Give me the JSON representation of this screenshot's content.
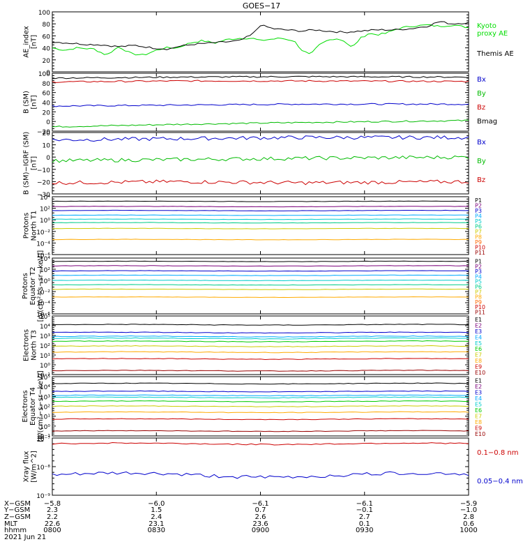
{
  "title": "GOES−17",
  "chart_data": [
    {
      "type": "line",
      "panel": "ae",
      "ylabel": [
        "AE_index",
        "[nT]"
      ],
      "ylim": [
        0,
        100
      ],
      "yticks": [
        "0",
        "20",
        "40",
        "60",
        "80",
        "100"
      ],
      "series": [
        {
          "name": "Kyoto proxy AE",
          "color": "#00dd00",
          "x": [
            0,
            0.03,
            0.06,
            0.1,
            0.13,
            0.16,
            0.19,
            0.22,
            0.25,
            0.27,
            0.3,
            0.33,
            0.36,
            0.39,
            0.42,
            0.45,
            0.48,
            0.5,
            0.52,
            0.55,
            0.58,
            0.6,
            0.62,
            0.64,
            0.66,
            0.68,
            0.7,
            0.72,
            0.74,
            0.76,
            0.78,
            0.8,
            0.83,
            0.86,
            0.9,
            0.93,
            0.96,
            1.0
          ],
          "values": [
            40,
            36,
            40,
            38,
            28,
            42,
            30,
            28,
            36,
            40,
            40,
            48,
            52,
            48,
            54,
            56,
            56,
            52,
            54,
            56,
            52,
            36,
            28,
            44,
            52,
            56,
            52,
            40,
            56,
            64,
            62,
            64,
            72,
            76,
            78,
            76,
            78,
            74
          ]
        },
        {
          "name": "Themis AE",
          "color": "#000000",
          "x": [
            0,
            0.04,
            0.08,
            0.12,
            0.16,
            0.2,
            0.24,
            0.28,
            0.3,
            0.34,
            0.38,
            0.42,
            0.45,
            0.48,
            0.5,
            0.53,
            0.56,
            0.6,
            0.63,
            0.66,
            0.7,
            0.74,
            0.78,
            0.82,
            0.86,
            0.9,
            0.93,
            0.96,
            1.0
          ],
          "values": [
            50,
            48,
            46,
            45,
            42,
            44,
            40,
            38,
            42,
            46,
            48,
            50,
            52,
            62,
            78,
            72,
            70,
            68,
            70,
            68,
            66,
            68,
            70,
            70,
            72,
            76,
            84,
            80,
            82
          ]
        }
      ]
    },
    {
      "type": "line",
      "panel": "bsm",
      "ylabel": [
        "B (SM)",
        "[nT]"
      ],
      "ylim": [
        -20,
        100
      ],
      "yticks": [
        "−20",
        "0",
        "20",
        "40",
        "60",
        "80",
        "100"
      ],
      "series": [
        {
          "name": "Bx",
          "color": "#0000cc",
          "x": [
            0,
            0.3,
            0.6,
            1.0
          ],
          "values": [
            32,
            34,
            36,
            36
          ]
        },
        {
          "name": "By",
          "color": "#00bb00",
          "x": [
            0,
            0.3,
            0.6,
            1.0
          ],
          "values": [
            -11,
            -6,
            -2,
            2
          ]
        },
        {
          "name": "Bz",
          "color": "#cc0000",
          "x": [
            0,
            0.3,
            0.6,
            1.0
          ],
          "values": [
            82,
            84,
            84,
            83
          ]
        },
        {
          "name": "Bmag",
          "color": "#000000",
          "x": [
            0,
            0.3,
            0.6,
            1.0
          ],
          "values": [
            90,
            92,
            93,
            92
          ]
        }
      ]
    },
    {
      "type": "line",
      "panel": "bigrf",
      "ylabel": [
        "B (SM)−IGRF (SM)",
        "[nT]"
      ],
      "ylim": [
        -30,
        20
      ],
      "yticks": [
        "−30",
        "−20",
        "−10",
        "0",
        "10",
        "20"
      ],
      "series": [
        {
          "name": "Bx",
          "color": "#0000cc",
          "x": [
            0,
            0.3,
            0.6,
            1.0
          ],
          "values": [
            14,
            15,
            16,
            16
          ]
        },
        {
          "name": "By",
          "color": "#00bb00",
          "x": [
            0,
            0.3,
            0.6,
            1.0
          ],
          "values": [
            -3,
            -2,
            -1,
            0
          ]
        },
        {
          "name": "Bz",
          "color": "#cc0000",
          "x": [
            0,
            0.3,
            0.6,
            1.0
          ],
          "values": [
            -21,
            -20,
            -21,
            -20
          ]
        }
      ]
    },
    {
      "type": "line",
      "panel": "prot1",
      "ylabel": [
        "Protons",
        "North T1"
      ],
      "ylog": true,
      "ylim": [
        -6,
        4
      ],
      "yticks": [
        "10⁻⁶",
        "10⁻⁴",
        "10⁻²",
        "10⁰",
        "10²",
        "10⁴"
      ],
      "legend": [
        "P1",
        "P2",
        "P3",
        "P4",
        "P5",
        "P6",
        "P7",
        "P8",
        "P9",
        "P10",
        "P11"
      ],
      "series": [
        {
          "name": "P1",
          "color": "#000000",
          "levels": [
            3.2
          ]
        },
        {
          "name": "P2",
          "color": "#7a007a",
          "levels": [
            2.3
          ]
        },
        {
          "name": "P3",
          "color": "#0000cc",
          "levels": [
            1.6
          ]
        },
        {
          "name": "P4",
          "color": "#00aaff",
          "levels": [
            0.8
          ]
        },
        {
          "name": "P5",
          "color": "#00cccc",
          "levels": [
            0.1
          ]
        },
        {
          "name": "P6",
          "color": "#00cc88",
          "levels": [
            -0.5
          ]
        },
        {
          "name": "P7",
          "color": "#cccc00",
          "levels": [
            -1.5
          ]
        },
        {
          "name": "P8",
          "color": "#ffaa00",
          "levels": [
            -3.4
          ]
        }
      ]
    },
    {
      "type": "line",
      "panel": "prot2",
      "ylabel": [
        "Protons",
        "Equator T2",
        "[p/(cm²−s−sr−keV)]"
      ],
      "ylog": true,
      "ylim": [
        -6,
        4
      ],
      "yticks": [
        "10⁻⁶",
        "10⁻⁴",
        "10⁻²",
        "10⁰",
        "10²",
        "10⁴"
      ],
      "legend": [
        "P1",
        "P2",
        "P3",
        "P4",
        "P5",
        "P6",
        "P7",
        "P8",
        "P9",
        "P10",
        "P11"
      ],
      "series": [
        {
          "name": "P1",
          "color": "#000000",
          "levels": [
            3.4
          ]
        },
        {
          "name": "P2",
          "color": "#7a007a",
          "levels": [
            2.6
          ]
        },
        {
          "name": "P3",
          "color": "#0000cc",
          "levels": [
            1.7
          ]
        },
        {
          "name": "P4",
          "color": "#00aaff",
          "levels": [
            0.9
          ]
        },
        {
          "name": "P5",
          "color": "#00cccc",
          "levels": [
            0.0
          ]
        },
        {
          "name": "P6",
          "color": "#00cc88",
          "levels": [
            -0.8
          ]
        },
        {
          "name": "P7",
          "color": "#cccc00",
          "levels": [
            -1.6
          ]
        },
        {
          "name": "P8",
          "color": "#ffaa00",
          "levels": [
            -3.0
          ]
        }
      ]
    },
    {
      "type": "line",
      "panel": "elec1",
      "ylabel": [
        "Electrons",
        "North T3"
      ],
      "ylog": true,
      "ylim": [
        -1,
        5
      ],
      "yticks": [
        "10⁻¹",
        "10⁰",
        "10¹",
        "10²",
        "10³",
        "10⁴",
        "10⁵"
      ],
      "legend": [
        "E1",
        "E2",
        "E3",
        "E4",
        "E5",
        "E6",
        "E7",
        "E8",
        "E9",
        "E10"
      ],
      "series": [
        {
          "name": "E1",
          "color": "#000000",
          "levels": [
            4.1
          ]
        },
        {
          "name": "E3",
          "color": "#0000cc",
          "levels": [
            3.3
          ]
        },
        {
          "name": "E4",
          "color": "#00aaff",
          "levels": [
            2.9
          ]
        },
        {
          "name": "E5",
          "color": "#00cccc",
          "levels": [
            2.7
          ]
        },
        {
          "name": "E6",
          "color": "#00cc00",
          "levels": [
            2.4
          ]
        },
        {
          "name": "E7",
          "color": "#cccc00",
          "levels": [
            1.9
          ]
        },
        {
          "name": "E8",
          "color": "#ffaa00",
          "levels": [
            1.3
          ]
        },
        {
          "name": "E9",
          "color": "#cc0000",
          "levels": [
            0.6
          ]
        },
        {
          "name": "E10",
          "color": "#990000",
          "levels": [
            -0.6
          ]
        }
      ]
    },
    {
      "type": "line",
      "panel": "elec2",
      "ylabel": [
        "Electrons",
        "Equator T4",
        "[e/(cm²−s−sr−keV)]"
      ],
      "ylog": true,
      "ylim": [
        -1,
        5
      ],
      "yticks": [
        "10⁻¹",
        "10⁰",
        "10¹",
        "10²",
        "10³",
        "10⁴",
        "10⁵"
      ],
      "legend": [
        "E1",
        "E2",
        "E3",
        "E4",
        "E5",
        "E6",
        "E7",
        "E8",
        "E9",
        "E10"
      ],
      "series": [
        {
          "name": "E1",
          "color": "#000000",
          "levels": [
            4.3
          ]
        },
        {
          "name": "E3",
          "color": "#0000cc",
          "levels": [
            3.5
          ]
        },
        {
          "name": "E4",
          "color": "#00aaff",
          "levels": [
            3.1
          ]
        },
        {
          "name": "E5",
          "color": "#00cccc",
          "levels": [
            2.9
          ]
        },
        {
          "name": "E6",
          "color": "#00cc00",
          "levels": [
            2.5
          ]
        },
        {
          "name": "E7",
          "color": "#cccc00",
          "levels": [
            2.0
          ]
        },
        {
          "name": "E8",
          "color": "#ffaa00",
          "levels": [
            1.4
          ]
        },
        {
          "name": "E9",
          "color": "#cc0000",
          "levels": [
            0.7
          ]
        },
        {
          "name": "E10",
          "color": "#990000",
          "levels": [
            -0.5
          ]
        }
      ]
    },
    {
      "type": "line",
      "panel": "xray",
      "ylabel": [
        "Xray flux",
        "[W/m^2]"
      ],
      "ylog": true,
      "ylim": [
        -9,
        -7
      ],
      "yticks": [
        "10⁻⁹",
        "10⁻⁸",
        "10⁻⁷"
      ],
      "legend": [
        "0.1−0.8 nm",
        "0.05−0.4 nm"
      ],
      "series": [
        {
          "name": "0.1−0.8 nm",
          "color": "#cc0000",
          "levels": [
            -7.2
          ]
        },
        {
          "name": "0.05−0.4 nm",
          "color": "#0000cc",
          "levels": [
            -8.3
          ]
        }
      ]
    }
  ],
  "ephemeris": {
    "row_labels": [
      "X−GSM",
      "Y−GSM",
      "Z−GSM",
      "MLT",
      "hhmm",
      "2021 Jun 21"
    ],
    "columns": [
      {
        "X": "−5.8",
        "Y": "2.3",
        "Z": "2.2",
        "MLT": "22.6",
        "hhmm": "0800"
      },
      {
        "X": "−6.0",
        "Y": "1.5",
        "Z": "2.4",
        "MLT": "23.1",
        "hhmm": "0830"
      },
      {
        "X": "−6.1",
        "Y": "0.7",
        "Z": "2.6",
        "MLT": "23.6",
        "hhmm": "0900"
      },
      {
        "X": "−6.1",
        "Y": "−0.1",
        "Z": "2.7",
        "MLT": "0.1",
        "hhmm": "0930"
      },
      {
        "X": "−5.9",
        "Y": "−1.0",
        "Z": "2.8",
        "MLT": "0.6",
        "hhmm": "1000"
      }
    ]
  },
  "legend_labels": {
    "ae": [
      {
        "text": "Kyoto",
        "color": "#00dd00"
      },
      {
        "text": "proxy AE",
        "color": "#00dd00"
      },
      {
        "text": "Themis AE",
        "color": "#000000"
      }
    ],
    "bsm": [
      {
        "text": "Bx",
        "color": "#0000cc"
      },
      {
        "text": "By",
        "color": "#00bb00"
      },
      {
        "text": "Bz",
        "color": "#cc0000"
      },
      {
        "text": "Bmag",
        "color": "#000000"
      }
    ],
    "bigrf": [
      {
        "text": "Bx",
        "color": "#0000cc"
      },
      {
        "text": "By",
        "color": "#00bb00"
      },
      {
        "text": "Bz",
        "color": "#cc0000"
      }
    ],
    "xray": [
      {
        "text": "0.1−0.8 nm",
        "color": "#cc0000"
      },
      {
        "text": "0.05−0.4 nm",
        "color": "#0000cc"
      }
    ]
  },
  "legend_colors_p": [
    "#000000",
    "#7a007a",
    "#0000cc",
    "#00aaff",
    "#00cccc",
    "#00cc88",
    "#cccc00",
    "#ffaa00",
    "#ff6600",
    "#cc0000",
    "#990000"
  ],
  "legend_colors_e": [
    "#000000",
    "#7a007a",
    "#0000cc",
    "#00aaff",
    "#00cccc",
    "#00cc00",
    "#cccc00",
    "#ffaa00",
    "#cc0000",
    "#990000"
  ]
}
